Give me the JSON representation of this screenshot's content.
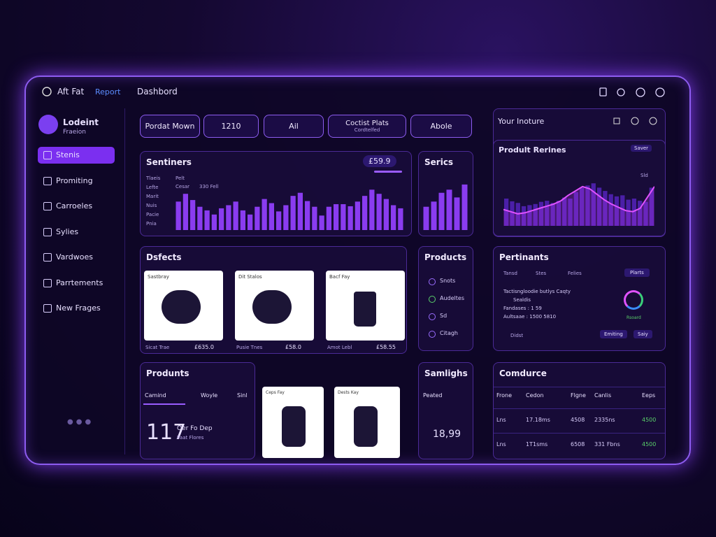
{
  "header": {
    "brand": "Aft Fat",
    "tab": "Report",
    "title": "Dashbord"
  },
  "sidebar": {
    "user": "Lodeint",
    "role": "Fraeion",
    "items": [
      "Stenis",
      "Promiting",
      "Carroeles",
      "Sylies",
      "Vardwoes",
      "Parrtements",
      "New Frages"
    ]
  },
  "toolbar": {
    "buttons": [
      "Pordat Mown",
      "1210",
      "Ail",
      "Coctist Plats",
      "Abole"
    ],
    "subtitle": "Cordtelfed"
  },
  "sentiners": {
    "title": "Sentiners",
    "badge": "£59.9",
    "labels": [
      "Tlaeis",
      "Lefte",
      "Marit",
      "Nuis",
      "Pacie",
      "Pnia"
    ],
    "legend": [
      "Pelt",
      "Cesar",
      "330 Fell"
    ],
    "values": [
      55,
      70,
      58,
      45,
      38,
      30,
      42,
      48,
      55,
      38,
      30,
      45,
      60,
      52,
      36,
      48,
      66,
      72,
      56,
      45,
      28,
      45,
      50,
      50,
      46,
      55,
      66,
      78,
      70,
      60,
      48,
      42
    ]
  },
  "series": {
    "title": "Serics",
    "values": [
      45,
      55,
      72,
      78,
      63,
      88
    ]
  },
  "insight": {
    "title": "Your Inoture",
    "chart_title": "Prodult Rerines",
    "action": "Saver",
    "tag": "Sld",
    "bars": [
      50,
      45,
      42,
      36,
      38,
      40,
      44,
      46,
      42,
      46,
      52,
      50,
      62,
      70,
      74,
      78,
      70,
      64,
      58,
      54,
      56,
      48,
      50,
      46,
      44,
      70
    ],
    "wave": [
      30,
      26,
      22,
      24,
      28,
      32,
      36,
      40,
      46,
      56,
      64,
      72,
      68,
      58,
      48,
      40,
      34,
      28,
      26,
      32,
      52,
      72
    ]
  },
  "defects": {
    "title": "Dsfects",
    "cards": [
      {
        "tag": "Sastbray",
        "name": "Sicat Trae",
        "price": "£635.0"
      },
      {
        "tag": "Dit Stalos",
        "name": "Pusie Tnes",
        "price": "£58.0"
      },
      {
        "tag": "Bacf Fay",
        "name": "Amot Lebl",
        "price": "£58.55"
      }
    ]
  },
  "products": {
    "title": "Products",
    "items": [
      "Snots",
      "Audeltes",
      "Sd",
      "Citagh"
    ]
  },
  "pertinants": {
    "title": "Pertinants",
    "tabs": [
      "Tansd",
      "Stes",
      "Felies"
    ],
    "button": "Plarts",
    "lines": [
      "Tactisngloodie butlys Caqty",
      "Sealdis",
      "Fandases : 1 59",
      "Aultsaae : 1500 5810"
    ],
    "link": "Didst",
    "ring": "Rsoard",
    "actions": [
      "Emiting",
      "Saiy"
    ]
  },
  "produnts": {
    "title": "Produnts",
    "tabs": [
      "Camind",
      "Woyle",
      "Sinl"
    ],
    "value": "117",
    "caption": "Oer Fo Dep",
    "sub": "Paat Flores",
    "cards": [
      "Ceps Fay",
      "Dests Kay"
    ]
  },
  "samlighs": {
    "title": "Samlighs",
    "label": "Peated",
    "value": "18,99"
  },
  "comdurce": {
    "title": "Comdurce",
    "columns": [
      "Frone",
      "Cedon",
      "Flgne",
      "Canlis",
      "Eeps"
    ],
    "rows": [
      [
        "Lns",
        "17.18ms",
        "4508",
        "2335ns",
        "4500"
      ],
      [
        "Lns",
        "1T1sms",
        "6508",
        "331 Fbns",
        "4500"
      ]
    ]
  }
}
